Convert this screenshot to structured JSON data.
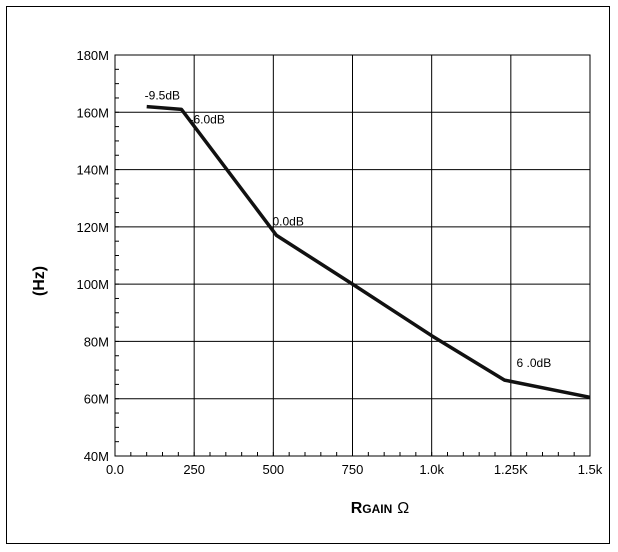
{
  "chart_data": {
    "type": "line",
    "xlabel_main": "R",
    "xlabel_sub": "GAIN",
    "xlabel_unit": "Ω",
    "ylabel": "(Hz)",
    "xlim": [
      0,
      1500
    ],
    "ylim": [
      40,
      180
    ],
    "x_ticks": [
      {
        "value": 0,
        "label": "0.0"
      },
      {
        "value": 250,
        "label": "250"
      },
      {
        "value": 500,
        "label": "500"
      },
      {
        "value": 750,
        "label": "750"
      },
      {
        "value": 1000,
        "label": "1.0k"
      },
      {
        "value": 1250,
        "label": "1.25K"
      },
      {
        "value": 1500,
        "label": "1.5k"
      }
    ],
    "y_ticks": [
      {
        "value": 40,
        "label": "40M"
      },
      {
        "value": 60,
        "label": "60M"
      },
      {
        "value": 80,
        "label": "80M"
      },
      {
        "value": 100,
        "label": "100M"
      },
      {
        "value": 120,
        "label": "120M"
      },
      {
        "value": 140,
        "label": "140M"
      },
      {
        "value": 160,
        "label": "160M"
      },
      {
        "value": 180,
        "label": "180M"
      }
    ],
    "grid": true,
    "series": [
      {
        "x": [
          100,
          210,
          510,
          750,
          1000,
          1230,
          1500
        ],
        "y": [
          162,
          161,
          117,
          100,
          82,
          66.5,
          60.5
        ]
      }
    ],
    "annotations": [
      {
        "text": "-9.5dB",
        "x": 100,
        "y": 162
      },
      {
        "text": "-6.0dB",
        "x": 210,
        "y": 161
      },
      {
        "text": "0.0dB",
        "x": 510,
        "y": 117
      },
      {
        "text": "6 .0dB",
        "x": 1230,
        "y": 66.5
      }
    ]
  }
}
